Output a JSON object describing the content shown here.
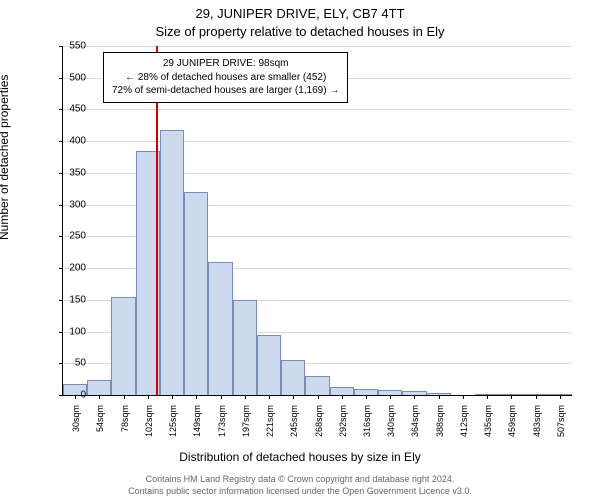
{
  "title_line1": "29, JUNIPER DRIVE, ELY, CB7 4TT",
  "title_line2": "Size of property relative to detached houses in Ely",
  "ylabel": "Number of detached properties",
  "xlabel": "Distribution of detached houses by size in Ely",
  "footer_line1": "Contains HM Land Registry data © Crown copyright and database right 2024.",
  "footer_line2": "Contains public sector information licensed under the Open Government Licence v3.0.",
  "chart": {
    "type": "bar",
    "ylim": [
      0,
      550
    ],
    "ytick_step": 50,
    "background_color": "#ffffff",
    "grid_color": "#d9d9d9",
    "axis_color": "#000000",
    "bar_fill": "#cdd9ef",
    "bar_stroke": "#7a8db8",
    "marker_color": "#d40000",
    "categories": [
      "30sqm",
      "54sqm",
      "78sqm",
      "102sqm",
      "125sqm",
      "149sqm",
      "173sqm",
      "197sqm",
      "221sqm",
      "245sqm",
      "268sqm",
      "292sqm",
      "316sqm",
      "340sqm",
      "364sqm",
      "388sqm",
      "412sqm",
      "435sqm",
      "459sqm",
      "483sqm",
      "507sqm"
    ],
    "values": [
      18,
      23,
      155,
      385,
      418,
      320,
      210,
      150,
      95,
      55,
      30,
      12,
      10,
      8,
      6,
      3,
      0,
      2,
      1,
      2,
      2
    ],
    "marker_position": 3.83,
    "bar_width_ratio": 1.0
  },
  "annotation": {
    "line1": "29 JUNIPER DRIVE: 98sqm",
    "line2": "← 28% of detached houses are smaller (452)",
    "line3": "72% of semi-detached houses are larger (1,169) →"
  }
}
